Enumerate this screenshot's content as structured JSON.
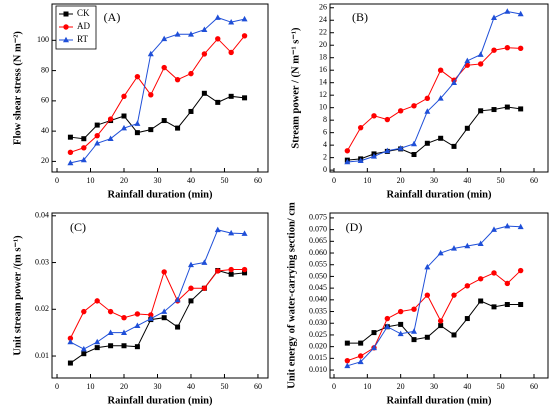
{
  "chart_data": [
    {
      "type": "line",
      "title": "(A)",
      "xlabel": "Rainfall duration (min)",
      "ylabel": "Flow shear stress (N m⁻²)",
      "x": [
        4,
        8,
        12,
        16,
        20,
        24,
        28,
        32,
        36,
        40,
        44,
        48,
        52,
        56
      ],
      "series": [
        {
          "name": "CK",
          "color": "#000000",
          "marker": "square",
          "values": [
            36,
            35,
            44,
            47,
            50,
            39,
            41,
            47,
            42,
            53,
            65,
            59,
            63,
            62
          ]
        },
        {
          "name": "AD",
          "color": "#ff0000",
          "marker": "circle",
          "values": [
            26,
            29,
            37,
            48,
            63,
            76,
            64,
            82,
            74,
            78,
            91,
            101,
            92,
            103
          ]
        },
        {
          "name": "RT",
          "color": "#1f4fd8",
          "marker": "triangle",
          "values": [
            19,
            21,
            32,
            35,
            42,
            45,
            91,
            101,
            104,
            104,
            107,
            115,
            112,
            114
          ]
        }
      ],
      "xlim": [
        -1.5,
        63
      ],
      "xticks": [
        0,
        10,
        20,
        30,
        40,
        50,
        60
      ],
      "ylim": [
        13,
        124
      ],
      "yticks": [
        20,
        40,
        60,
        80,
        100
      ],
      "legend": "upper left"
    },
    {
      "type": "line",
      "title": "(B)",
      "xlabel": "Rainfall duration (min)",
      "ylabel": "Stream power / (N m⁻¹ s⁻¹)",
      "x": [
        4,
        8,
        12,
        16,
        20,
        24,
        28,
        32,
        36,
        40,
        44,
        48,
        52,
        56
      ],
      "series": [
        {
          "color": "#000000",
          "marker": "square",
          "values": [
            1.6,
            1.8,
            2.6,
            3.0,
            3.4,
            2.5,
            4.3,
            5.1,
            3.8,
            6.7,
            9.5,
            9.7,
            10.1,
            9.8
          ]
        },
        {
          "color": "#ff0000",
          "marker": "circle",
          "values": [
            3.1,
            6.8,
            8.7,
            8.1,
            9.5,
            10.3,
            11.5,
            16.0,
            14.4,
            16.8,
            17.0,
            19.2,
            19.6,
            19.5
          ]
        },
        {
          "color": "#1f4fd8",
          "marker": "triangle",
          "values": [
            1.3,
            1.5,
            2.2,
            3.1,
            3.5,
            4.2,
            9.4,
            11.5,
            14.0,
            17.5,
            18.5,
            24.4,
            25.4,
            25.0
          ]
        }
      ],
      "xlim": [
        -1.2,
        64.2
      ],
      "xticks": [
        0,
        10,
        20,
        30,
        40,
        50,
        60
      ],
      "ylim": [
        -0.3,
        26.6
      ],
      "yticks": [
        0,
        2,
        4,
        6,
        8,
        10,
        12,
        14,
        16,
        18,
        20,
        22,
        24,
        26
      ]
    },
    {
      "type": "line",
      "title": "(C)",
      "xlabel": "Rainfall duration (min)",
      "ylabel": "Unit stream power /(m s⁻¹)",
      "x": [
        4,
        8,
        12,
        16,
        20,
        24,
        28,
        32,
        36,
        40,
        44,
        48,
        52,
        56
      ],
      "series": [
        {
          "color": "#000000",
          "marker": "square",
          "values": [
            0.0085,
            0.0105,
            0.0118,
            0.0122,
            0.0122,
            0.012,
            0.0178,
            0.0182,
            0.0162,
            0.0218,
            0.0245,
            0.0283,
            0.0275,
            0.0278
          ]
        },
        {
          "color": "#ff0000",
          "marker": "circle",
          "values": [
            0.0138,
            0.0195,
            0.0218,
            0.0195,
            0.0182,
            0.019,
            0.0188,
            0.028,
            0.0218,
            0.0245,
            0.0245,
            0.0282,
            0.0285,
            0.0285
          ]
        },
        {
          "color": "#1f4fd8",
          "marker": "triangle",
          "values": [
            0.013,
            0.0115,
            0.013,
            0.015,
            0.015,
            0.0165,
            0.018,
            0.0195,
            0.022,
            0.0295,
            0.03,
            0.037,
            0.0363,
            0.0362
          ]
        }
      ],
      "xlim": [
        -1.5,
        63
      ],
      "xticks": [
        0,
        10,
        20,
        30,
        40,
        50,
        60
      ],
      "ylim": [
        0.0053,
        0.0406
      ],
      "yticks": [
        0.01,
        0.02,
        0.03,
        0.04
      ]
    },
    {
      "type": "line",
      "title": "(D)",
      "xlabel": "Rainfall duration (min)",
      "ylabel": "Unit energy of water-carrying section/ cm",
      "x": [
        4,
        8,
        12,
        16,
        20,
        24,
        28,
        32,
        36,
        40,
        44,
        48,
        52,
        56
      ],
      "series": [
        {
          "color": "#000000",
          "marker": "square",
          "values": [
            0.0215,
            0.0215,
            0.026,
            0.0285,
            0.0295,
            0.023,
            0.024,
            0.029,
            0.025,
            0.032,
            0.0395,
            0.037,
            0.038,
            0.038
          ]
        },
        {
          "color": "#ff0000",
          "marker": "circle",
          "values": [
            0.014,
            0.016,
            0.0195,
            0.032,
            0.035,
            0.036,
            0.042,
            0.031,
            0.042,
            0.046,
            0.049,
            0.0515,
            0.047,
            0.0525
          ]
        },
        {
          "color": "#1f4fd8",
          "marker": "triangle",
          "values": [
            0.0118,
            0.0135,
            0.0195,
            0.0285,
            0.0255,
            0.0265,
            0.054,
            0.06,
            0.062,
            0.063,
            0.064,
            0.07,
            0.0715,
            0.0712
          ]
        }
      ],
      "xlim": [
        -1.2,
        64.2
      ],
      "xticks": [
        0,
        10,
        20,
        30,
        40,
        50,
        60
      ],
      "ylim": [
        0.0066,
        0.0771
      ],
      "yticks": [
        {
          "value": 0.01,
          "label": "0.010"
        },
        {
          "value": 0.015,
          "label": "0.015"
        },
        {
          "value": 0.02,
          "label": "0.020"
        },
        {
          "value": 0.025,
          "label": "0.025"
        },
        {
          "value": 0.03,
          "label": "0.030"
        },
        {
          "value": 0.035,
          "label": "0.035"
        },
        {
          "value": 0.04,
          "label": "0.040"
        },
        {
          "value": 0.045,
          "label": "0.045"
        },
        {
          "value": 0.05,
          "label": "0.050"
        },
        {
          "value": 0.055,
          "label": "0.055"
        },
        {
          "value": 0.06,
          "label": "0.060"
        },
        {
          "value": 0.065,
          "label": "0.065"
        },
        {
          "value": 0.07,
          "label": "0.070"
        },
        {
          "value": 0.075,
          "label": "0.075"
        }
      ]
    }
  ]
}
